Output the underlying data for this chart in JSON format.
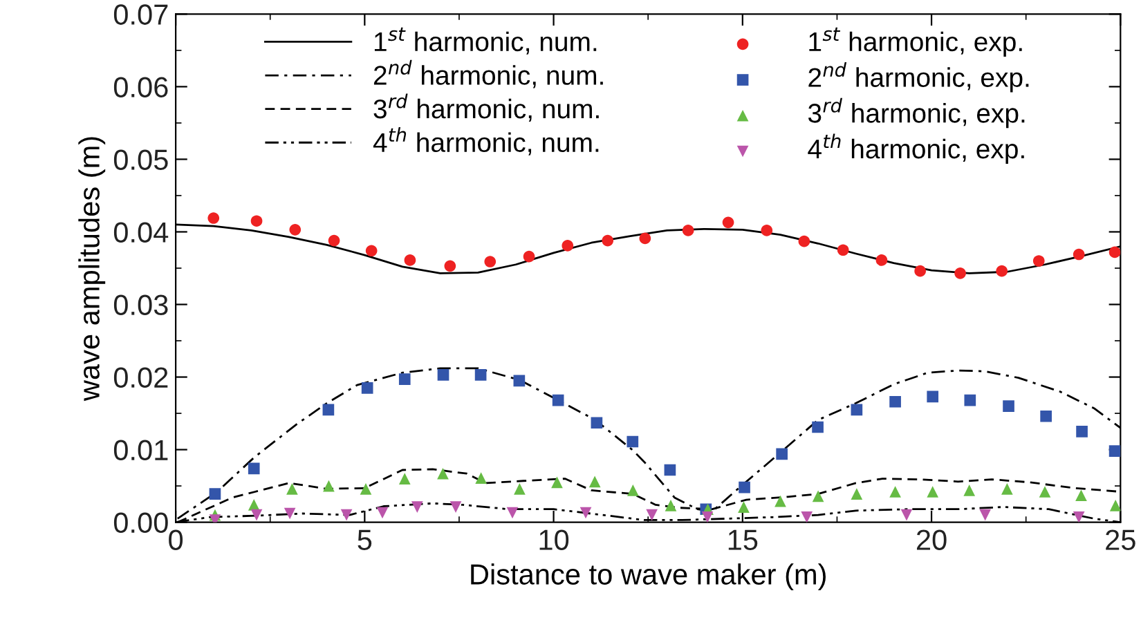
{
  "chart_data": {
    "type": "line",
    "xlabel": "Distance to wave maker (m)",
    "ylabel": "wave amplitudes (m)",
    "xlim": [
      0,
      25
    ],
    "xticks": [
      0,
      5,
      10,
      15,
      20,
      25
    ],
    "ylim": [
      0,
      0.07
    ],
    "yticks": [
      {
        "value": 0,
        "label": "0.00"
      },
      {
        "value": 0.01,
        "label": "0.01"
      },
      {
        "value": 0.02,
        "label": "0.02"
      },
      {
        "value": 0.03,
        "label": "0.03"
      },
      {
        "value": 0.04,
        "label": "0.04"
      },
      {
        "value": 0.05,
        "label": "0.05"
      },
      {
        "value": 0.06,
        "label": "0.06"
      },
      {
        "value": 0.07,
        "label": "0.07"
      }
    ],
    "grid": false,
    "legend": "top",
    "series": [
      {
        "name": "1$^{st}$ harmonic, num.",
        "color": "#000000",
        "line_style": "solid",
        "marker": "none",
        "x": [
          0,
          1,
          2,
          3,
          4,
          5,
          6,
          7,
          8,
          9,
          10,
          11,
          12,
          13,
          14,
          15,
          16,
          17,
          18,
          19,
          20,
          21,
          22,
          23,
          24,
          25
        ],
        "values": [
          0.041,
          0.0408,
          0.0402,
          0.0393,
          0.0382,
          0.0368,
          0.0352,
          0.0343,
          0.0344,
          0.0355,
          0.0371,
          0.0385,
          0.0394,
          0.0402,
          0.0404,
          0.0403,
          0.0396,
          0.0384,
          0.037,
          0.0357,
          0.0347,
          0.0343,
          0.0345,
          0.0355,
          0.0367,
          0.038
        ]
      },
      {
        "name": "2$^{nd}$ harmonic, num.",
        "color": "#000000",
        "line_style": "dashdot",
        "marker": "none",
        "x": [
          0.05,
          1.1,
          2.07,
          3.2,
          4,
          4.8,
          6,
          7,
          8,
          9.1,
          10.05,
          11.1,
          12.1,
          12.4,
          13.2,
          13.8,
          14.2,
          14.9,
          16,
          17,
          18,
          19,
          19.9,
          20.7,
          21.4,
          22.3,
          23.4,
          24.3,
          25
        ],
        "values": [
          0.0005,
          0.0042,
          0.0089,
          0.0135,
          0.0164,
          0.0189,
          0.0206,
          0.0212,
          0.0212,
          0.0196,
          0.017,
          0.0141,
          0.0099,
          0.0083,
          0.0034,
          0.0018,
          0.0015,
          0.0047,
          0.0096,
          0.0141,
          0.0164,
          0.019,
          0.0206,
          0.0209,
          0.0208,
          0.0199,
          0.018,
          0.0157,
          0.013
        ]
      },
      {
        "name": "3$^{rd}$ harmonic, num.",
        "color": "#000000",
        "line_style": "dashed",
        "marker": "none",
        "x": [
          0.05,
          1.5,
          2.1,
          3,
          4,
          5,
          6,
          6.8,
          7.7,
          8.2,
          9.2,
          10.3,
          11,
          12.1,
          12.7,
          13.3,
          14.2,
          15.1,
          16.2,
          17,
          18,
          18.7,
          19.7,
          20.7,
          21.6,
          22.6,
          23.8,
          25
        ],
        "values": [
          0,
          0.0034,
          0.0042,
          0.0054,
          0.0046,
          0.0047,
          0.0072,
          0.0073,
          0.0067,
          0.0054,
          0.0057,
          0.006,
          0.0044,
          0.0039,
          0.0024,
          0.002,
          0.0018,
          0.0031,
          0.0035,
          0.0039,
          0.0054,
          0.006,
          0.0059,
          0.0056,
          0.0059,
          0.0055,
          0.0047,
          0.0042
        ]
      },
      {
        "name": "4$^{th}$ harmonic, num.",
        "color": "#000000",
        "line_style": "dashdotdot",
        "marker": "none",
        "x": [
          0,
          0.9,
          2.1,
          3.35,
          4.6,
          5.5,
          6.8,
          7.6,
          8.8,
          10,
          11.3,
          12.4,
          13.4,
          14.6,
          15.8,
          17,
          18,
          19.4,
          20.7,
          21.9,
          23.1,
          24.3,
          25
        ],
        "values": [
          0,
          0.0007,
          0.0009,
          0.0012,
          0.001,
          0.0022,
          0.0026,
          0.0024,
          0.0018,
          0.0018,
          0.001,
          0.0003,
          0.0003,
          0.0005,
          0.0007,
          0.001,
          0.0016,
          0.0018,
          0.0018,
          0.0021,
          0.0018,
          0.0005,
          0
        ]
      },
      {
        "type": "scatter",
        "name": "1$^{st}$ harmonic, exp.",
        "color": "#ee2222",
        "marker": "circle",
        "x": [
          1.0,
          2.14,
          3.16,
          4.19,
          5.18,
          6.2,
          7.26,
          8.32,
          9.35,
          10.37,
          11.43,
          12.42,
          13.56,
          14.62,
          15.64,
          16.63,
          17.66,
          18.68,
          19.7,
          20.76,
          21.86,
          22.84,
          23.9,
          24.85
        ],
        "values": [
          0.0419,
          0.0415,
          0.0403,
          0.0388,
          0.0374,
          0.0361,
          0.0353,
          0.0359,
          0.0366,
          0.0381,
          0.0388,
          0.0391,
          0.0402,
          0.0413,
          0.0402,
          0.0387,
          0.0375,
          0.0361,
          0.0346,
          0.0343,
          0.0346,
          0.036,
          0.0369,
          0.0372
        ]
      },
      {
        "type": "scatter",
        "name": "2$^{nd}$ harmonic, exp.",
        "color": "#3355aa",
        "marker": "square",
        "x": [
          1.04,
          2.07,
          4.04,
          5.07,
          6.06,
          7.08,
          8.07,
          9.09,
          10.12,
          11.14,
          12.09,
          13.08,
          14.03,
          15.05,
          16.04,
          16.99,
          18.02,
          19.04,
          20.03,
          21.02,
          22.04,
          23.03,
          23.98,
          24.85
        ],
        "values": [
          0.0039,
          0.0074,
          0.0155,
          0.0185,
          0.0197,
          0.0203,
          0.0203,
          0.0195,
          0.0168,
          0.0137,
          0.0111,
          0.0072,
          0.0018,
          0.0048,
          0.0094,
          0.0131,
          0.0155,
          0.0166,
          0.0173,
          0.0168,
          0.016,
          0.0146,
          0.0125,
          0.0098
        ]
      },
      {
        "type": "scatter",
        "name": "3$^{rd}$ harmonic, exp.",
        "color": "#66bb44",
        "marker": "triangle",
        "x": [
          1.04,
          2.07,
          3.08,
          4.05,
          5.03,
          6.06,
          7.07,
          8.08,
          9.1,
          10.09,
          11.09,
          12.1,
          13.1,
          14.08,
          15.03,
          16.0,
          17.0,
          18.02,
          19.04,
          20.03,
          21.0,
          22.0,
          23.0,
          23.96,
          24.87
        ],
        "values": [
          0.001,
          0.0024,
          0.0046,
          0.005,
          0.0046,
          0.006,
          0.0067,
          0.0061,
          0.0046,
          0.0055,
          0.0056,
          0.0044,
          0.0023,
          0.0018,
          0.0021,
          0.0029,
          0.0036,
          0.0039,
          0.0042,
          0.0042,
          0.0044,
          0.0046,
          0.0042,
          0.0037,
          0.0023
        ]
      },
      {
        "type": "scatter",
        "name": "4$^{th}$ harmonic, exp.",
        "color": "#bb55aa",
        "marker": "triangle_down",
        "x": [
          1.04,
          2.14,
          3.02,
          4.52,
          5.47,
          6.39,
          7.41,
          8.91,
          10.85,
          12.6,
          14.07,
          16.7,
          19.34,
          21.42,
          23.9
        ],
        "values": [
          0.0003,
          0.001,
          0.0012,
          0.001,
          0.0013,
          0.0021,
          0.0021,
          0.0013,
          0.0013,
          0.001,
          0.0007,
          0.0007,
          0.001,
          0.001,
          0.0007
        ]
      }
    ]
  }
}
